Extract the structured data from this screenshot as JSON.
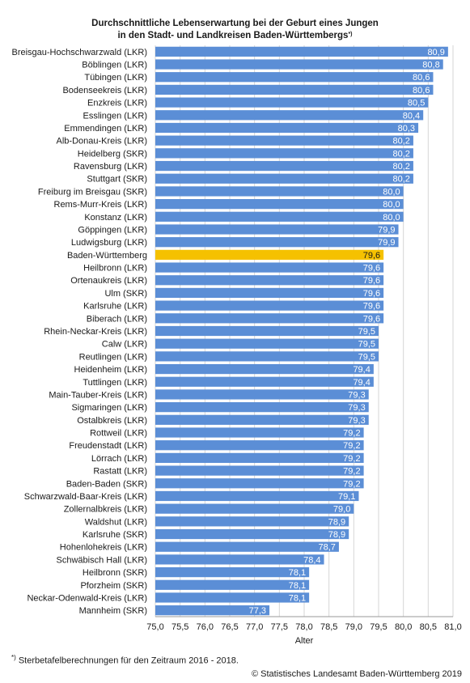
{
  "title": {
    "line1": "Durchschnittliche Lebenserwartung bei der Geburt eines Jungen",
    "line2": "in den Stadt- und Landkreisen Baden-Württembergs",
    "marker": "*)"
  },
  "footnote": {
    "marker": "*)",
    "text": " Sterbetafelberechnungen für den Zeitraum 2016 - 2018."
  },
  "source": "© Statistisches Landesamt Baden-Württemberg 2019",
  "colors": {
    "bar": "#5b8ed6",
    "highlight": "#f5c100",
    "grid": "#d6d6d6"
  },
  "chart_data": {
    "type": "bar",
    "orientation": "horizontal",
    "xlabel": "Alter",
    "xlim": [
      75.0,
      81.0
    ],
    "xticks": [
      "75,0",
      "75,5",
      "76,0",
      "76,5",
      "77,0",
      "77,5",
      "78,0",
      "78,5",
      "79,0",
      "79,5",
      "80,0",
      "80,5",
      "81,0"
    ],
    "grid": true,
    "highlight_category": "Baden-Württemberg",
    "categories": [
      "Breisgau-Hochschwarzwald (LKR)",
      "Böblingen (LKR)",
      "Tübingen (LKR)",
      "Bodenseekreis (LKR)",
      "Enzkreis (LKR)",
      "Esslingen (LKR)",
      "Emmendingen (LKR)",
      "Alb-Donau-Kreis (LKR)",
      "Heidelberg (SKR)",
      "Ravensburg (LKR)",
      "Stuttgart (SKR)",
      "Freiburg im Breisgau (SKR)",
      "Rems-Murr-Kreis  (LKR)",
      "Konstanz (LKR)",
      "Göppingen (LKR)",
      "Ludwigsburg (LKR)",
      "Baden-Württemberg",
      "Heilbronn (LKR)",
      "Ortenaukreis (LKR)",
      "Ulm (SKR)",
      "Karlsruhe (LKR)",
      "Biberach (LKR)",
      "Rhein-Neckar-Kreis (LKR)",
      "Calw (LKR)",
      "Reutlingen (LKR)",
      "Heidenheim (LKR)",
      "Tuttlingen (LKR)",
      "Main-Tauber-Kreis (LKR)",
      "Sigmaringen (LKR)",
      "Ostalbkreis (LKR)",
      "Rottweil (LKR)",
      "Freudenstadt (LKR)",
      "Lörrach (LKR)",
      "Rastatt (LKR)",
      "Baden-Baden (SKR)",
      "Schwarzwald-Baar-Kreis (LKR)",
      "Zollernalbkreis (LKR)",
      "Waldshut (LKR)",
      "Karlsruhe (SKR)",
      "Hohenlohekreis (LKR)",
      "Schwäbisch Hall (LKR)",
      "Heilbronn (SKR)",
      "Pforzheim (SKR)",
      "Neckar-Odenwald-Kreis (LKR)",
      "Mannheim (SKR)"
    ],
    "values": [
      80.9,
      80.8,
      80.6,
      80.6,
      80.5,
      80.4,
      80.3,
      80.2,
      80.2,
      80.2,
      80.2,
      80.0,
      80.0,
      80.0,
      79.9,
      79.9,
      79.6,
      79.6,
      79.6,
      79.6,
      79.6,
      79.6,
      79.5,
      79.5,
      79.5,
      79.4,
      79.4,
      79.3,
      79.3,
      79.3,
      79.2,
      79.2,
      79.2,
      79.2,
      79.2,
      79.1,
      79.0,
      78.9,
      78.9,
      78.7,
      78.4,
      78.1,
      78.1,
      78.1,
      77.3
    ],
    "labels": [
      "80,9",
      "80,8",
      "80,6",
      "80,6",
      "80,5",
      "80,4",
      "80,3",
      "80,2",
      "80,2",
      "80,2",
      "80,2",
      "80,0",
      "80,0",
      "80,0",
      "79,9",
      "79,9",
      "79,6",
      "79,6",
      "79,6",
      "79,6",
      "79,6",
      "79,6",
      "79,5",
      "79,5",
      "79,5",
      "79,4",
      "79,4",
      "79,3",
      "79,3",
      "79,3",
      "79,2",
      "79,2",
      "79,2",
      "79,2",
      "79,2",
      "79,1",
      "79,0",
      "78,9",
      "78,9",
      "78,7",
      "78,4",
      "78,1",
      "78,1",
      "78,1",
      "77,3"
    ]
  }
}
